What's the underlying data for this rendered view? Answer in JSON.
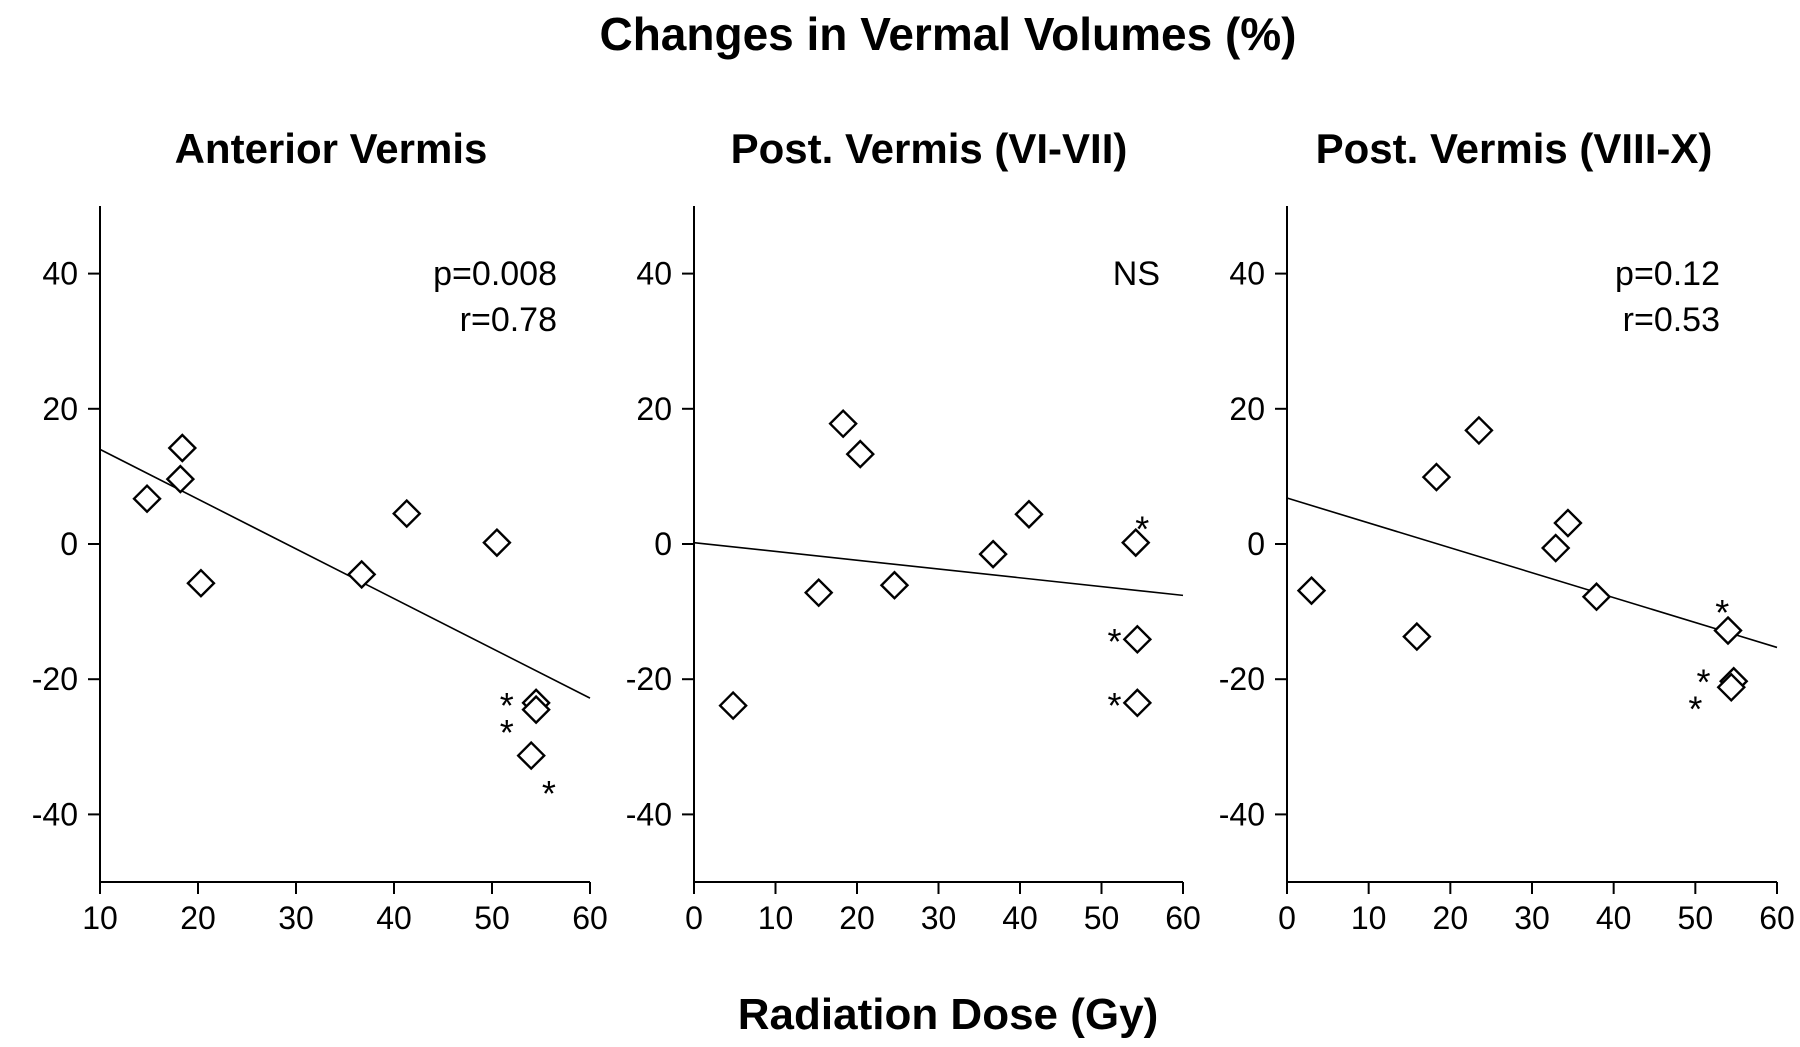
{
  "figure": {
    "title": "Changes in Vermal Volumes (%)",
    "xlabel": "Radiation Dose (Gy)"
  },
  "chart_data": [
    {
      "type": "scatter",
      "title": "Anterior Vermis",
      "xlabel": "Radiation Dose (Gy)",
      "ylabel": "",
      "xlim": [
        10,
        60
      ],
      "ylim": [
        -50,
        50
      ],
      "xticks": [
        10,
        20,
        30,
        40,
        50,
        60
      ],
      "yticks": [
        -40,
        -20,
        0,
        20,
        40
      ],
      "grid": false,
      "legend": "none",
      "annotations": [
        "p=0.008",
        "r=0.78"
      ],
      "points": [
        {
          "x": 14.8,
          "y": 6.7
        },
        {
          "x": 18.4,
          "y": 14.2
        },
        {
          "x": 18.2,
          "y": 9.6
        },
        {
          "x": 20.3,
          "y": -5.8
        },
        {
          "x": 36.7,
          "y": -4.5
        },
        {
          "x": 41.3,
          "y": 4.5
        },
        {
          "x": 50.5,
          "y": 0.2
        },
        {
          "x": 54.5,
          "y": -23.5
        },
        {
          "x": 54.5,
          "y": -24.5
        },
        {
          "x": 54.0,
          "y": -31.3
        }
      ],
      "asterisks": [
        {
          "x": 51.5,
          "y": -22.5
        },
        {
          "x": 51.5,
          "y": -26.5
        },
        {
          "x": 55.8,
          "y": -35.5
        }
      ],
      "fit_line": {
        "x": [
          10,
          60
        ],
        "y": [
          14.0,
          -22.8
        ]
      }
    },
    {
      "type": "scatter",
      "title": "Post. Vermis (VI-VII)",
      "xlabel": "Radiation Dose (Gy)",
      "ylabel": "",
      "xlim": [
        0,
        60
      ],
      "ylim": [
        -50,
        50
      ],
      "xticks": [
        0,
        10,
        20,
        30,
        40,
        50,
        60
      ],
      "yticks": [
        -40,
        -20,
        0,
        20,
        40
      ],
      "grid": false,
      "legend": "none",
      "annotations": [
        "NS"
      ],
      "points": [
        {
          "x": 4.8,
          "y": -23.9
        },
        {
          "x": 15.3,
          "y": -7.2
        },
        {
          "x": 18.3,
          "y": 17.8
        },
        {
          "x": 20.4,
          "y": 13.3
        },
        {
          "x": 24.6,
          "y": -6.1
        },
        {
          "x": 36.7,
          "y": -1.5
        },
        {
          "x": 41.1,
          "y": 4.4
        },
        {
          "x": 54.2,
          "y": 0.2
        },
        {
          "x": 54.4,
          "y": -14.1
        },
        {
          "x": 54.4,
          "y": -23.5
        }
      ],
      "asterisks": [
        {
          "x": 55.0,
          "y": 3.6
        },
        {
          "x": 51.6,
          "y": -13.0
        },
        {
          "x": 51.6,
          "y": -22.5
        }
      ],
      "fit_line": {
        "x": [
          0,
          60
        ],
        "y": [
          0.2,
          -7.6
        ]
      }
    },
    {
      "type": "scatter",
      "title": "Post. Vermis (VIII-X)",
      "xlabel": "Radiation Dose (Gy)",
      "ylabel": "",
      "xlim": [
        0,
        60
      ],
      "ylim": [
        -50,
        50
      ],
      "xticks": [
        0,
        10,
        20,
        30,
        40,
        50,
        60
      ],
      "yticks": [
        -40,
        -20,
        0,
        20,
        40
      ],
      "grid": false,
      "legend": "none",
      "annotations": [
        "p=0.12",
        "r=0.53"
      ],
      "points": [
        {
          "x": 3.0,
          "y": -6.9
        },
        {
          "x": 15.9,
          "y": -13.7
        },
        {
          "x": 18.3,
          "y": 9.9
        },
        {
          "x": 23.5,
          "y": 16.8
        },
        {
          "x": 32.9,
          "y": -0.6
        },
        {
          "x": 34.4,
          "y": 3.1
        },
        {
          "x": 37.9,
          "y": -7.8
        },
        {
          "x": 54.0,
          "y": -12.8
        },
        {
          "x": 54.7,
          "y": -20.3
        },
        {
          "x": 54.4,
          "y": -21.2
        }
      ],
      "asterisks": [
        {
          "x": 53.3,
          "y": -8.7
        },
        {
          "x": 51.0,
          "y": -19.0
        },
        {
          "x": 50.0,
          "y": -23.0
        }
      ],
      "fit_line": {
        "x": [
          0,
          60
        ],
        "y": [
          6.8,
          -15.3
        ]
      }
    }
  ]
}
